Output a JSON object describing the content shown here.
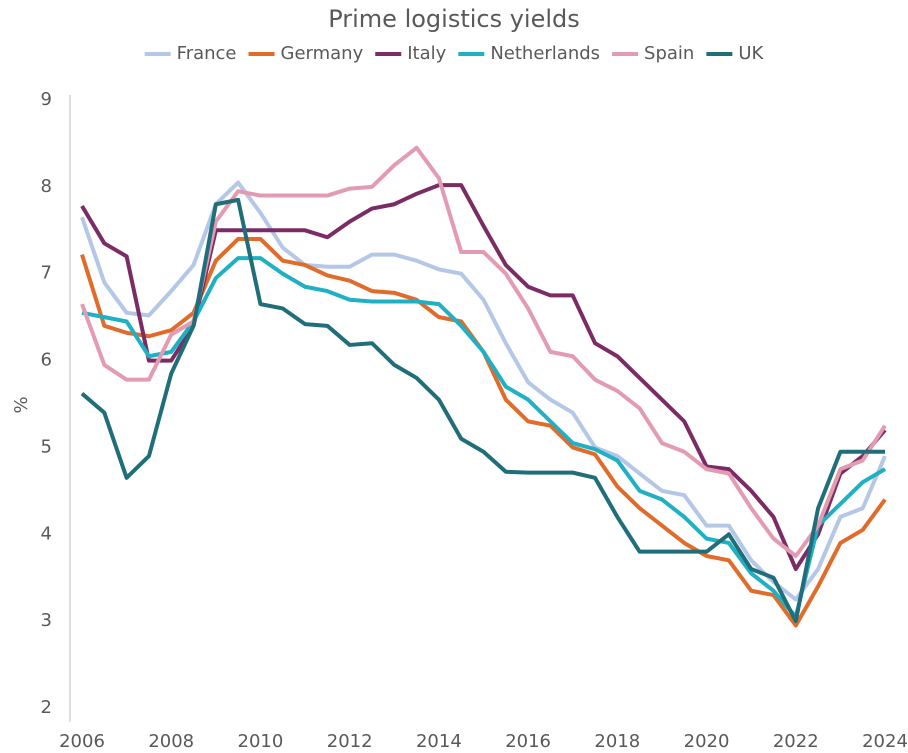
{
  "chart_data": {
    "type": "line",
    "title": "Prime logistics yields",
    "y_label": "%",
    "x": [
      2006,
      2006.5,
      2007,
      2007.5,
      2008,
      2008.5,
      2009,
      2009.5,
      2010,
      2010.5,
      2011,
      2011.5,
      2012,
      2012.5,
      2013,
      2013.5,
      2014,
      2014.5,
      2015,
      2015.5,
      2016,
      2016.5,
      2017,
      2017.5,
      2018,
      2018.5,
      2019,
      2019.5,
      2020,
      2020.5,
      2021,
      2021.5,
      2022,
      2022.5,
      2023,
      2023.5,
      2024
    ],
    "xlim": [
      2006,
      2024
    ],
    "xticks": [
      2006,
      2008,
      2010,
      2012,
      2014,
      2016,
      2018,
      2020,
      2022,
      2024
    ],
    "ylim": [
      2,
      9
    ],
    "yticks": [
      2,
      3,
      4,
      5,
      6,
      7,
      8,
      9
    ],
    "grid": false,
    "legend": "top",
    "series": [
      {
        "name": "France",
        "color": "#b4c7e7",
        "values": [
          7.65,
          6.9,
          6.55,
          6.52,
          6.8,
          7.1,
          7.8,
          8.05,
          7.7,
          7.3,
          7.1,
          7.08,
          7.08,
          7.22,
          7.22,
          7.15,
          7.05,
          7.0,
          6.7,
          6.2,
          5.75,
          5.55,
          5.4,
          5.0,
          4.9,
          4.7,
          4.5,
          4.45,
          4.1,
          4.1,
          3.7,
          3.45,
          3.25,
          3.6,
          4.2,
          4.3,
          4.9
        ]
      },
      {
        "name": "Germany",
        "color": "#e06b2a",
        "values": [
          7.22,
          6.4,
          6.32,
          6.28,
          6.35,
          6.55,
          7.15,
          7.4,
          7.4,
          7.15,
          7.1,
          6.98,
          6.92,
          6.8,
          6.78,
          6.7,
          6.5,
          6.45,
          6.1,
          5.55,
          5.3,
          5.25,
          5.0,
          4.92,
          4.55,
          4.3,
          4.1,
          3.9,
          3.75,
          3.7,
          3.35,
          3.3,
          2.95,
          3.4,
          3.9,
          4.05,
          4.4
        ]
      },
      {
        "name": "Italy",
        "color": "#7b2c65",
        "values": [
          7.78,
          7.35,
          7.2,
          6.0,
          6.0,
          6.4,
          7.5,
          7.5,
          7.5,
          7.5,
          7.5,
          7.42,
          7.6,
          7.75,
          7.8,
          7.92,
          8.02,
          8.02,
          7.55,
          7.1,
          6.85,
          6.75,
          6.75,
          6.2,
          6.05,
          5.8,
          5.55,
          5.3,
          4.78,
          4.75,
          4.5,
          4.2,
          3.6,
          4.0,
          4.7,
          4.9,
          5.2
        ]
      },
      {
        "name": "Netherlands",
        "color": "#1fb0c3",
        "values": [
          6.55,
          6.5,
          6.45,
          6.05,
          6.1,
          6.45,
          6.95,
          7.18,
          7.18,
          7.0,
          6.85,
          6.8,
          6.7,
          6.68,
          6.68,
          6.68,
          6.65,
          6.4,
          6.1,
          5.7,
          5.55,
          5.3,
          5.05,
          4.98,
          4.85,
          4.5,
          4.4,
          4.2,
          3.95,
          3.9,
          3.55,
          3.35,
          3.05,
          4.1,
          4.35,
          4.6,
          4.75
        ]
      },
      {
        "name": "Spain",
        "color": "#e39bb2",
        "values": [
          6.65,
          5.95,
          5.78,
          5.78,
          6.3,
          6.45,
          7.6,
          7.95,
          7.9,
          7.9,
          7.9,
          7.9,
          7.98,
          8.0,
          8.25,
          8.45,
          8.1,
          7.25,
          7.25,
          7.0,
          6.6,
          6.1,
          6.05,
          5.78,
          5.65,
          5.45,
          5.05,
          4.95,
          4.75,
          4.7,
          4.3,
          3.95,
          3.75,
          4.1,
          4.75,
          4.85,
          5.25
        ]
      },
      {
        "name": "UK",
        "color": "#1f6e7a",
        "values": [
          5.62,
          5.4,
          4.65,
          4.9,
          5.85,
          6.4,
          7.8,
          7.85,
          6.65,
          6.6,
          6.42,
          6.4,
          6.18,
          6.2,
          5.95,
          5.8,
          5.55,
          5.1,
          4.95,
          4.72,
          4.71,
          4.71,
          4.71,
          4.65,
          4.2,
          3.8,
          3.8,
          3.8,
          3.8,
          4.0,
          3.6,
          3.5,
          3.0,
          4.3,
          4.95,
          4.95,
          4.95
        ]
      }
    ]
  }
}
